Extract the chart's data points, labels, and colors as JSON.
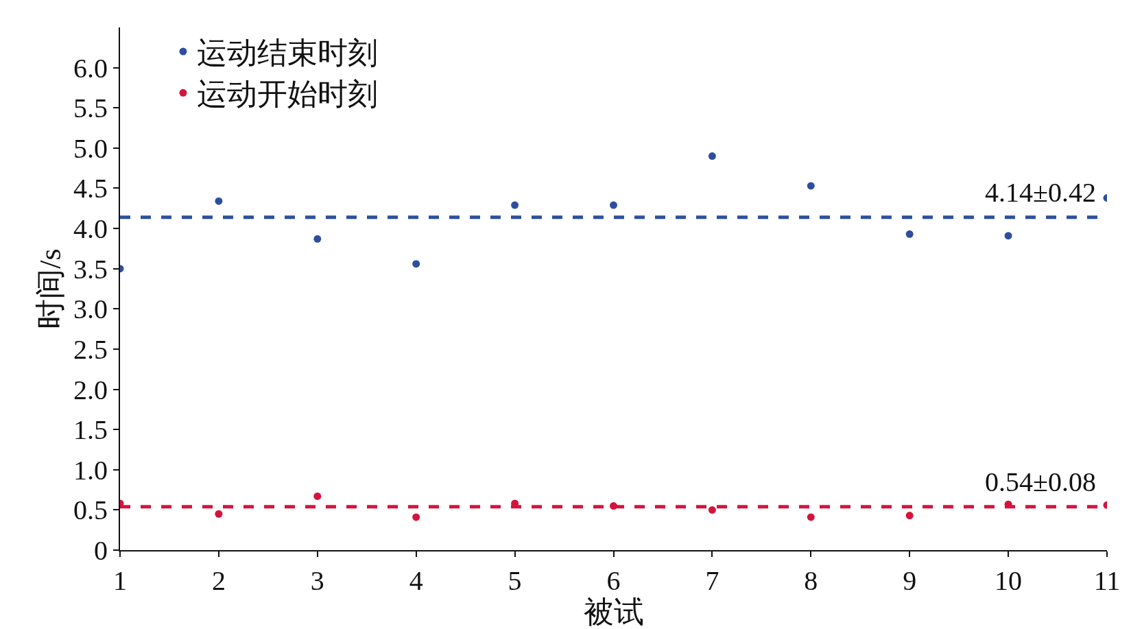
{
  "chart_data": {
    "type": "scatter",
    "xlabel": "被试",
    "ylabel": "时间/s",
    "x": [
      1,
      2,
      3,
      4,
      5,
      6,
      7,
      8,
      9,
      10,
      11
    ],
    "series": [
      {
        "name": "运动结束时刻",
        "color": "#2e4fa0",
        "values": [
          3.5,
          4.34,
          3.87,
          3.56,
          4.29,
          4.29,
          4.9,
          4.53,
          3.93,
          3.91,
          4.38
        ]
      },
      {
        "name": "运动开始时刻",
        "color": "#d4143c",
        "values": [
          0.58,
          0.45,
          0.67,
          0.41,
          0.58,
          0.55,
          0.5,
          0.41,
          0.43,
          0.57,
          0.56
        ]
      }
    ],
    "xlim": [
      1,
      11
    ],
    "xticks": [
      1,
      2,
      3,
      4,
      5,
      6,
      7,
      8,
      9,
      10,
      11
    ],
    "ylim": [
      0,
      6.5
    ],
    "yticks": [
      0,
      {
        "value": 0.5,
        "label": "0.5"
      },
      {
        "value": 1,
        "label": "1.0"
      },
      {
        "value": 1.5,
        "label": "1.5"
      },
      {
        "value": 2,
        "label": "2.0"
      },
      {
        "value": 2.5,
        "label": "2.5"
      },
      {
        "value": 3,
        "label": "3.0"
      },
      {
        "value": 3.5,
        "label": "3.5"
      },
      {
        "value": 4,
        "label": "4.0"
      },
      {
        "value": 4.5,
        "label": "4.5"
      },
      {
        "value": 5,
        "label": "5.0"
      },
      {
        "value": 5.5,
        "label": "5.5"
      },
      {
        "value": 6,
        "label": "6.0"
      }
    ],
    "ref_lines": [
      {
        "axis": "y",
        "value": 4.14,
        "label": "4.14±0.42",
        "color": "#2e4fa0",
        "line_style": "dashed"
      },
      {
        "axis": "y",
        "value": 0.54,
        "label": "0.54±0.08",
        "color": "#d4143c",
        "line_style": "dashed"
      }
    ],
    "grid": false,
    "legend": "top left",
    "marker": "circle"
  }
}
